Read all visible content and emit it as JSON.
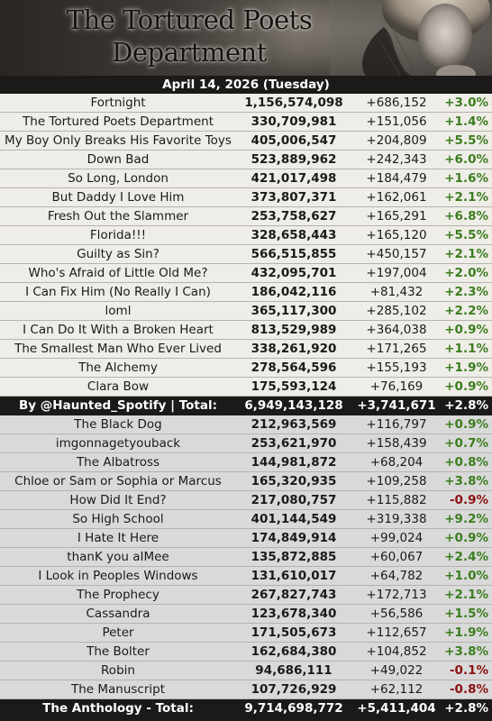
{
  "header": {
    "title_line1": "The Tortured Poets",
    "title_line2": "Department"
  },
  "date": "April 14, 2026 (Tuesday)",
  "section1": [
    {
      "name": "Fortnight",
      "total": "1,156,574,098",
      "daily": "+686,152",
      "pct": "+3.0%",
      "dir": "pos"
    },
    {
      "name": "The Tortured Poets Department",
      "total": "330,709,981",
      "daily": "+151,056",
      "pct": "+1.4%",
      "dir": "pos"
    },
    {
      "name": "My Boy Only Breaks His Favorite Toys",
      "total": "405,006,547",
      "daily": "+204,809",
      "pct": "+5.5%",
      "dir": "pos"
    },
    {
      "name": "Down Bad",
      "total": "523,889,962",
      "daily": "+242,343",
      "pct": "+6.0%",
      "dir": "pos"
    },
    {
      "name": "So Long, London",
      "total": "421,017,498",
      "daily": "+184,479",
      "pct": "+1.6%",
      "dir": "pos"
    },
    {
      "name": "But Daddy I Love Him",
      "total": "373,807,371",
      "daily": "+162,061",
      "pct": "+2.1%",
      "dir": "pos"
    },
    {
      "name": "Fresh Out the Slammer",
      "total": "253,758,627",
      "daily": "+165,291",
      "pct": "+6.8%",
      "dir": "pos"
    },
    {
      "name": "Florida!!!",
      "total": "328,658,443",
      "daily": "+165,120",
      "pct": "+5.5%",
      "dir": "pos"
    },
    {
      "name": "Guilty as Sin?",
      "total": "566,515,855",
      "daily": "+450,157",
      "pct": "+2.1%",
      "dir": "pos"
    },
    {
      "name": "Who's Afraid of Little Old Me?",
      "total": "432,095,701",
      "daily": "+197,004",
      "pct": "+2.0%",
      "dir": "pos"
    },
    {
      "name": "I Can Fix Him (No Really I Can)",
      "total": "186,042,116",
      "daily": "+81,432",
      "pct": "+2.3%",
      "dir": "pos"
    },
    {
      "name": "loml",
      "total": "365,117,300",
      "daily": "+285,102",
      "pct": "+2.2%",
      "dir": "pos"
    },
    {
      "name": "I Can Do It With a Broken Heart",
      "total": "813,529,989",
      "daily": "+364,038",
      "pct": "+0.9%",
      "dir": "pos"
    },
    {
      "name": "The Smallest Man Who Ever Lived",
      "total": "338,261,920",
      "daily": "+171,265",
      "pct": "+1.1%",
      "dir": "pos"
    },
    {
      "name": "The Alchemy",
      "total": "278,564,596",
      "daily": "+155,193",
      "pct": "+1.9%",
      "dir": "pos"
    },
    {
      "name": "Clara Bow",
      "total": "175,593,124",
      "daily": "+76,169",
      "pct": "+0.9%",
      "dir": "pos"
    }
  ],
  "subtotal": {
    "label": "By @Haunted_Spotify | Total:",
    "total": "6,949,143,128",
    "daily": "+3,741,671",
    "pct": "+2.8%"
  },
  "section2": [
    {
      "name": "The Black Dog",
      "total": "212,963,569",
      "daily": "+116,797",
      "pct": "+0.9%",
      "dir": "pos"
    },
    {
      "name": "imgonnagetyouback",
      "total": "253,621,970",
      "daily": "+158,439",
      "pct": "+0.7%",
      "dir": "pos"
    },
    {
      "name": "The Albatross",
      "total": "144,981,872",
      "daily": "+68,204",
      "pct": "+0.8%",
      "dir": "pos"
    },
    {
      "name": "Chloe or Sam or Sophia or Marcus",
      "total": "165,320,935",
      "daily": "+109,258",
      "pct": "+3.8%",
      "dir": "pos"
    },
    {
      "name": "How Did It End?",
      "total": "217,080,757",
      "daily": "+115,882",
      "pct": "-0.9%",
      "dir": "neg"
    },
    {
      "name": "So High School",
      "total": "401,144,549",
      "daily": "+319,338",
      "pct": "+9.2%",
      "dir": "pos"
    },
    {
      "name": "I Hate It Here",
      "total": "174,849,914",
      "daily": "+99,024",
      "pct": "+0.9%",
      "dir": "pos"
    },
    {
      "name": "thanK you aIMee",
      "total": "135,872,885",
      "daily": "+60,067",
      "pct": "+2.4%",
      "dir": "pos"
    },
    {
      "name": "I Look in Peoples Windows",
      "total": "131,610,017",
      "daily": "+64,782",
      "pct": "+1.0%",
      "dir": "pos"
    },
    {
      "name": "The Prophecy",
      "total": "267,827,743",
      "daily": "+172,713",
      "pct": "+2.1%",
      "dir": "pos"
    },
    {
      "name": "Cassandra",
      "total": "123,678,340",
      "daily": "+56,586",
      "pct": "+1.5%",
      "dir": "pos"
    },
    {
      "name": "Peter",
      "total": "171,505,673",
      "daily": "+112,657",
      "pct": "+1.9%",
      "dir": "pos"
    },
    {
      "name": "The Bolter",
      "total": "162,684,380",
      "daily": "+104,852",
      "pct": "+3.8%",
      "dir": "pos"
    },
    {
      "name": "Robin",
      "total": "94,686,111",
      "daily": "+49,022",
      "pct": "-0.1%",
      "dir": "neg"
    },
    {
      "name": "The Manuscript",
      "total": "107,726,929",
      "daily": "+62,112",
      "pct": "-0.8%",
      "dir": "neg"
    }
  ],
  "grand_total": {
    "label": "The Anthology - Total:",
    "total": "9,714,698,772",
    "daily": "+5,411,404",
    "pct": "+2.8%"
  }
}
